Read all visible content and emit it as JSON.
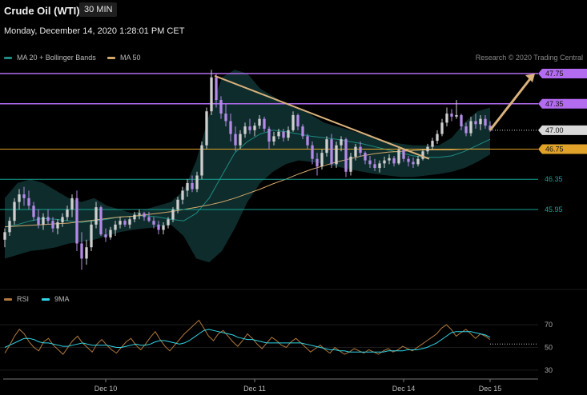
{
  "header": {
    "title": "Crude Oil (WTI)",
    "timeframe": "30 MIN",
    "timestamp": "Monday, December 14, 2020 1:28:01 PM CET",
    "credit": "Research © 2020 Trading Central"
  },
  "legend": {
    "items": [
      {
        "label": "MA 20 + Bollinger Bands",
        "color": "#1f8a82"
      },
      {
        "label": "MA 50",
        "color": "#d2a86a"
      }
    ]
  },
  "rsi_legend": {
    "items": [
      {
        "label": "RSI",
        "color": "#b2793b"
      },
      {
        "label": "9MA",
        "color": "#2fd6e8"
      }
    ]
  },
  "colors": {
    "bull": "#cfcfcf",
    "bear": "#b48ae8",
    "resistance": "#b36bef",
    "support": "#16a394",
    "pivot": "#e0a228",
    "current": "#d9d9d9",
    "trendline": "#d9b27c",
    "arrow": "#d9b27c",
    "bb_fill": "#0f2e2e"
  },
  "chart_data": [
    {
      "type": "candlestick",
      "title": "Crude Oil (WTI)",
      "timeframe": "30 MIN",
      "ylim": [
        45.4,
        48.0
      ],
      "x_ticks": [
        "Dec 10",
        "Dec 11",
        "Dec 14",
        "Dec 15"
      ],
      "levels": [
        {
          "price": 47.75,
          "label": "47.75",
          "kind": "resistance"
        },
        {
          "price": 47.35,
          "label": "47.35",
          "kind": "resistance"
        },
        {
          "price": 47.0,
          "label": "47.00",
          "kind": "current"
        },
        {
          "price": 46.75,
          "label": "46.75",
          "kind": "pivot"
        },
        {
          "price": 46.35,
          "label": "46.35",
          "kind": "support"
        },
        {
          "price": 45.95,
          "label": "45.95",
          "kind": "support"
        }
      ],
      "trendline": {
        "from": [
          47.72
        ],
        "to": [
          46.62
        ]
      },
      "forecast_arrow": {
        "from": 47.0,
        "to": 47.75
      },
      "ma50": [
        45.72,
        45.73,
        45.74,
        45.75,
        45.76,
        45.77,
        45.79,
        45.81,
        45.83,
        45.85,
        45.86,
        45.88,
        45.9,
        45.92,
        45.95,
        45.98,
        46.01,
        46.05,
        46.1,
        46.16,
        46.22,
        46.29,
        46.35,
        46.42,
        46.48,
        46.53,
        46.58,
        46.62,
        46.66,
        46.69,
        46.71,
        46.72,
        46.73,
        46.74,
        46.74,
        46.74,
        46.75,
        46.75,
        46.75
      ],
      "ma20": [
        45.72,
        45.75,
        45.8,
        45.83,
        45.82,
        45.8,
        45.78,
        45.8,
        45.82,
        45.85,
        45.86,
        45.87,
        45.85,
        45.82,
        45.8,
        45.9,
        46.1,
        46.4,
        46.7,
        46.85,
        46.95,
        47.0,
        46.98,
        46.95,
        46.92,
        46.9,
        46.88,
        46.85,
        46.82,
        46.78,
        46.74,
        46.7,
        46.66,
        46.64,
        46.64,
        46.66,
        46.72,
        46.8,
        46.88
      ],
      "bb_upper": [
        46.1,
        46.3,
        46.35,
        46.3,
        46.2,
        46.1,
        46.05,
        46.1,
        46.0,
        45.95,
        45.9,
        45.95,
        46.0,
        46.05,
        46.2,
        46.6,
        47.2,
        47.7,
        47.8,
        47.75,
        47.55,
        47.45,
        47.35,
        47.3,
        47.2,
        47.1,
        47.05,
        47.0,
        46.95,
        46.9,
        46.85,
        46.82,
        46.8,
        46.8,
        46.8,
        46.9,
        47.1,
        47.25,
        47.3
      ],
      "bb_lower": [
        45.3,
        45.35,
        45.4,
        45.42,
        45.45,
        45.5,
        45.52,
        45.55,
        45.6,
        45.65,
        45.68,
        45.7,
        45.72,
        45.75,
        45.6,
        45.3,
        45.25,
        45.4,
        45.7,
        46.05,
        46.3,
        46.45,
        46.55,
        46.6,
        46.58,
        46.55,
        46.52,
        46.48,
        46.45,
        46.42,
        46.4,
        46.38,
        46.38,
        46.4,
        46.42,
        46.45,
        46.5,
        46.58,
        46.68
      ],
      "candles": [
        {
          "o": 45.55,
          "h": 45.7,
          "l": 45.45,
          "c": 45.65
        },
        {
          "o": 45.65,
          "h": 45.85,
          "l": 45.6,
          "c": 45.8
        },
        {
          "o": 45.8,
          "h": 46.1,
          "l": 45.75,
          "c": 46.05
        },
        {
          "o": 46.05,
          "h": 46.22,
          "l": 45.95,
          "c": 46.15
        },
        {
          "o": 46.15,
          "h": 46.25,
          "l": 46.0,
          "c": 46.1
        },
        {
          "o": 46.1,
          "h": 46.2,
          "l": 45.95,
          "c": 46.0
        },
        {
          "o": 46.0,
          "h": 46.05,
          "l": 45.8,
          "c": 45.85
        },
        {
          "o": 45.85,
          "h": 45.95,
          "l": 45.7,
          "c": 45.75
        },
        {
          "o": 45.75,
          "h": 45.9,
          "l": 45.68,
          "c": 45.85
        },
        {
          "o": 45.85,
          "h": 45.95,
          "l": 45.75,
          "c": 45.8
        },
        {
          "o": 45.8,
          "h": 45.85,
          "l": 45.65,
          "c": 45.7
        },
        {
          "o": 45.7,
          "h": 45.82,
          "l": 45.62,
          "c": 45.78
        },
        {
          "o": 45.78,
          "h": 45.9,
          "l": 45.72,
          "c": 45.85
        },
        {
          "o": 45.85,
          "h": 46.0,
          "l": 45.8,
          "c": 45.95
        },
        {
          "o": 45.95,
          "h": 46.15,
          "l": 45.85,
          "c": 46.1
        },
        {
          "o": 46.1,
          "h": 46.2,
          "l": 45.4,
          "c": 45.5
        },
        {
          "o": 45.5,
          "h": 45.65,
          "l": 45.15,
          "c": 45.3
        },
        {
          "o": 45.3,
          "h": 45.55,
          "l": 45.22,
          "c": 45.45
        },
        {
          "o": 45.45,
          "h": 45.8,
          "l": 45.4,
          "c": 45.75
        },
        {
          "o": 45.75,
          "h": 46.05,
          "l": 45.7,
          "c": 45.98
        },
        {
          "o": 45.98,
          "h": 46.0,
          "l": 45.6,
          "c": 45.62
        },
        {
          "o": 45.62,
          "h": 45.7,
          "l": 45.52,
          "c": 45.58
        },
        {
          "o": 45.58,
          "h": 45.72,
          "l": 45.55,
          "c": 45.68
        },
        {
          "o": 45.68,
          "h": 45.8,
          "l": 45.6,
          "c": 45.75
        },
        {
          "o": 45.75,
          "h": 45.85,
          "l": 45.7,
          "c": 45.8
        },
        {
          "o": 45.8,
          "h": 45.82,
          "l": 45.72,
          "c": 45.75
        },
        {
          "o": 45.75,
          "h": 45.85,
          "l": 45.7,
          "c": 45.82
        },
        {
          "o": 45.82,
          "h": 45.92,
          "l": 45.78,
          "c": 45.88
        },
        {
          "o": 45.88,
          "h": 45.95,
          "l": 45.82,
          "c": 45.9
        },
        {
          "o": 45.9,
          "h": 45.92,
          "l": 45.8,
          "c": 45.85
        },
        {
          "o": 45.85,
          "h": 45.92,
          "l": 45.78,
          "c": 45.8
        },
        {
          "o": 45.8,
          "h": 45.85,
          "l": 45.7,
          "c": 45.75
        },
        {
          "o": 45.75,
          "h": 45.8,
          "l": 45.62,
          "c": 45.68
        },
        {
          "o": 45.68,
          "h": 45.78,
          "l": 45.62,
          "c": 45.74
        },
        {
          "o": 45.74,
          "h": 45.85,
          "l": 45.7,
          "c": 45.82
        },
        {
          "o": 45.82,
          "h": 45.98,
          "l": 45.78,
          "c": 45.95
        },
        {
          "o": 45.95,
          "h": 46.12,
          "l": 45.9,
          "c": 46.08
        },
        {
          "o": 46.08,
          "h": 46.25,
          "l": 46.02,
          "c": 46.2
        },
        {
          "o": 46.2,
          "h": 46.35,
          "l": 46.12,
          "c": 46.3
        },
        {
          "o": 46.3,
          "h": 46.4,
          "l": 46.18,
          "c": 46.22
        },
        {
          "o": 46.22,
          "h": 46.45,
          "l": 46.18,
          "c": 46.4
        },
        {
          "o": 46.4,
          "h": 46.85,
          "l": 46.35,
          "c": 46.8
        },
        {
          "o": 46.8,
          "h": 47.3,
          "l": 46.75,
          "c": 47.25
        },
        {
          "o": 47.25,
          "h": 47.8,
          "l": 47.2,
          "c": 47.7
        },
        {
          "o": 47.7,
          "h": 47.75,
          "l": 47.3,
          "c": 47.4
        },
        {
          "o": 47.4,
          "h": 47.45,
          "l": 47.15,
          "c": 47.22
        },
        {
          "o": 47.22,
          "h": 47.35,
          "l": 47.05,
          "c": 47.12
        },
        {
          "o": 47.12,
          "h": 47.22,
          "l": 46.85,
          "c": 46.95
        },
        {
          "o": 46.95,
          "h": 47.05,
          "l": 46.72,
          "c": 46.8
        },
        {
          "o": 46.8,
          "h": 47.0,
          "l": 46.75,
          "c": 46.95
        },
        {
          "o": 46.95,
          "h": 47.1,
          "l": 46.9,
          "c": 47.05
        },
        {
          "o": 47.05,
          "h": 47.15,
          "l": 46.95,
          "c": 47.0
        },
        {
          "o": 47.0,
          "h": 47.1,
          "l": 46.92,
          "c": 47.06
        },
        {
          "o": 47.06,
          "h": 47.2,
          "l": 47.02,
          "c": 47.15
        },
        {
          "o": 47.15,
          "h": 47.18,
          "l": 46.98,
          "c": 47.02
        },
        {
          "o": 47.02,
          "h": 47.05,
          "l": 46.75,
          "c": 46.85
        },
        {
          "o": 46.85,
          "h": 46.98,
          "l": 46.8,
          "c": 46.92
        },
        {
          "o": 46.92,
          "h": 47.02,
          "l": 46.88,
          "c": 46.98
        },
        {
          "o": 46.98,
          "h": 47.02,
          "l": 46.85,
          "c": 46.9
        },
        {
          "o": 46.9,
          "h": 47.05,
          "l": 46.86,
          "c": 47.0
        },
        {
          "o": 47.0,
          "h": 47.25,
          "l": 46.98,
          "c": 47.2
        },
        {
          "o": 47.2,
          "h": 47.22,
          "l": 47.0,
          "c": 47.05
        },
        {
          "o": 47.05,
          "h": 47.08,
          "l": 46.88,
          "c": 46.92
        },
        {
          "o": 46.92,
          "h": 46.95,
          "l": 46.75,
          "c": 46.8
        },
        {
          "o": 46.8,
          "h": 46.85,
          "l": 46.55,
          "c": 46.62
        },
        {
          "o": 46.62,
          "h": 46.7,
          "l": 46.4,
          "c": 46.52
        },
        {
          "o": 46.52,
          "h": 46.75,
          "l": 46.48,
          "c": 46.7
        },
        {
          "o": 46.7,
          "h": 46.92,
          "l": 46.65,
          "c": 46.88
        },
        {
          "o": 46.88,
          "h": 46.95,
          "l": 46.5,
          "c": 46.55
        },
        {
          "o": 46.55,
          "h": 46.85,
          "l": 46.5,
          "c": 46.8
        },
        {
          "o": 46.8,
          "h": 46.92,
          "l": 46.72,
          "c": 46.88
        },
        {
          "o": 46.88,
          "h": 46.9,
          "l": 46.38,
          "c": 46.45
        },
        {
          "o": 46.45,
          "h": 46.7,
          "l": 46.4,
          "c": 46.65
        },
        {
          "o": 46.65,
          "h": 46.82,
          "l": 46.6,
          "c": 46.78
        },
        {
          "o": 46.78,
          "h": 46.85,
          "l": 46.65,
          "c": 46.7
        },
        {
          "o": 46.7,
          "h": 46.72,
          "l": 46.55,
          "c": 46.6
        },
        {
          "o": 46.6,
          "h": 46.66,
          "l": 46.5,
          "c": 46.55
        },
        {
          "o": 46.55,
          "h": 46.62,
          "l": 46.46,
          "c": 46.5
        },
        {
          "o": 46.5,
          "h": 46.6,
          "l": 46.44,
          "c": 46.56
        },
        {
          "o": 46.56,
          "h": 46.65,
          "l": 46.5,
          "c": 46.6
        },
        {
          "o": 46.6,
          "h": 46.68,
          "l": 46.55,
          "c": 46.63
        },
        {
          "o": 46.63,
          "h": 46.66,
          "l": 46.52,
          "c": 46.56
        },
        {
          "o": 46.56,
          "h": 46.78,
          "l": 46.54,
          "c": 46.74
        },
        {
          "o": 46.74,
          "h": 46.76,
          "l": 46.58,
          "c": 46.62
        },
        {
          "o": 46.62,
          "h": 46.66,
          "l": 46.52,
          "c": 46.58
        },
        {
          "o": 46.58,
          "h": 46.64,
          "l": 46.5,
          "c": 46.55
        },
        {
          "o": 46.55,
          "h": 46.66,
          "l": 46.52,
          "c": 46.62
        },
        {
          "o": 46.62,
          "h": 46.75,
          "l": 46.6,
          "c": 46.72
        },
        {
          "o": 46.72,
          "h": 46.82,
          "l": 46.68,
          "c": 46.78
        },
        {
          "o": 46.78,
          "h": 46.9,
          "l": 46.74,
          "c": 46.86
        },
        {
          "o": 46.86,
          "h": 47.0,
          "l": 46.82,
          "c": 46.95
        },
        {
          "o": 46.95,
          "h": 47.15,
          "l": 46.92,
          "c": 47.1
        },
        {
          "o": 47.1,
          "h": 47.3,
          "l": 47.05,
          "c": 47.22
        },
        {
          "o": 47.22,
          "h": 47.28,
          "l": 47.12,
          "c": 47.18
        },
        {
          "o": 47.18,
          "h": 47.4,
          "l": 47.15,
          "c": 47.2
        },
        {
          "o": 47.2,
          "h": 47.22,
          "l": 47.0,
          "c": 47.05
        },
        {
          "o": 47.05,
          "h": 47.1,
          "l": 46.92,
          "c": 46.96
        },
        {
          "o": 46.96,
          "h": 47.18,
          "l": 46.92,
          "c": 47.12
        },
        {
          "o": 47.12,
          "h": 47.22,
          "l": 47.02,
          "c": 47.08
        },
        {
          "o": 47.08,
          "h": 47.2,
          "l": 47.0,
          "c": 47.15
        },
        {
          "o": 47.15,
          "h": 47.2,
          "l": 47.02,
          "c": 47.06
        },
        {
          "o": 47.06,
          "h": 47.12,
          "l": 46.98,
          "c": 47.0
        }
      ]
    },
    {
      "type": "line",
      "title": "RSI",
      "ylim": [
        25,
        80
      ],
      "y_ticks": [
        70,
        50,
        30
      ],
      "reference_line": 53,
      "series": [
        {
          "name": "RSI",
          "values": [
            45,
            52,
            60,
            66,
            62,
            55,
            50,
            47,
            55,
            58,
            52,
            48,
            44,
            50,
            56,
            60,
            54,
            50,
            46,
            53,
            57,
            52,
            48,
            45,
            50,
            55,
            58,
            52,
            48,
            53,
            59,
            64,
            57,
            51,
            47,
            52,
            57,
            62,
            66,
            70,
            74,
            67,
            60,
            56,
            62,
            65,
            60,
            55,
            51,
            56,
            62,
            58,
            53,
            49,
            54,
            59,
            56,
            52,
            50,
            55,
            58,
            54,
            50,
            46,
            49,
            52,
            48,
            45,
            50,
            47,
            44,
            46,
            49,
            47,
            45,
            48,
            46,
            44,
            47,
            49,
            46,
            48,
            51,
            49,
            47,
            50,
            53,
            56,
            59,
            62,
            67,
            70,
            66,
            60,
            63,
            66,
            62,
            58,
            62,
            60,
            57
          ]
        },
        {
          "name": "9MA",
          "values": [
            50,
            52,
            54,
            56,
            58,
            58,
            57,
            55,
            54,
            54,
            53,
            52,
            51,
            51,
            52,
            53,
            54,
            53,
            52,
            52,
            52,
            52,
            51,
            50,
            50,
            51,
            52,
            53,
            52,
            52,
            53,
            55,
            56,
            56,
            55,
            54,
            53,
            54,
            56,
            59,
            62,
            65,
            66,
            65,
            64,
            63,
            62,
            61,
            59,
            58,
            57,
            57,
            56,
            55,
            54,
            54,
            54,
            54,
            54,
            54,
            54,
            54,
            53,
            52,
            51,
            50,
            49,
            48,
            48,
            47,
            47,
            46,
            46,
            46,
            46,
            46,
            46,
            46,
            46,
            47,
            47,
            47,
            47,
            48,
            48,
            48,
            49,
            50,
            52,
            54,
            57,
            60,
            63,
            64,
            64,
            64,
            64,
            63,
            62,
            61,
            59
          ]
        }
      ]
    }
  ]
}
